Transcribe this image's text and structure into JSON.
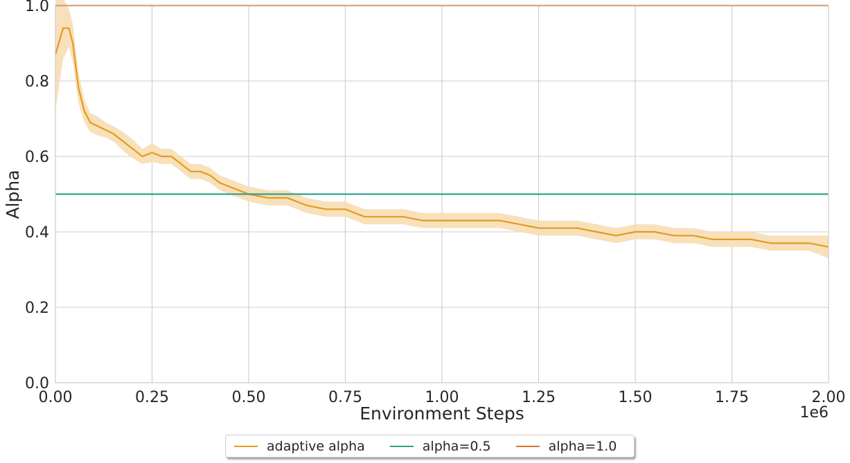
{
  "chart_data": {
    "type": "line",
    "xlabel": "Environment Steps",
    "ylabel": "Alpha",
    "x_offset_text": "1e6",
    "xlim": [
      0,
      2000000
    ],
    "ylim": [
      0,
      1.0
    ],
    "x_ticks": [
      0,
      250000,
      500000,
      750000,
      1000000,
      1250000,
      1500000,
      1750000,
      2000000
    ],
    "x_tick_labels": [
      "0.00",
      "0.25",
      "0.50",
      "0.75",
      "1.00",
      "1.25",
      "1.50",
      "1.75",
      "2.00"
    ],
    "y_ticks": [
      0,
      0.2,
      0.4,
      0.6,
      0.8,
      1.0
    ],
    "y_tick_labels": [
      "0.0",
      "0.2",
      "0.4",
      "0.6",
      "0.8",
      "1.0"
    ],
    "grid": true,
    "legend_placement": "bottom-center-outside",
    "series": [
      {
        "name": "adaptive alpha",
        "color": "#e39b1d",
        "band_color": "#f7ddb3",
        "x": [
          0,
          20000,
          35000,
          45000,
          60000,
          75000,
          90000,
          110000,
          130000,
          150000,
          175000,
          200000,
          225000,
          250000,
          275000,
          300000,
          325000,
          350000,
          375000,
          400000,
          425000,
          450000,
          475000,
          500000,
          550000,
          600000,
          650000,
          700000,
          750000,
          800000,
          850000,
          900000,
          950000,
          1000000,
          1050000,
          1100000,
          1150000,
          1200000,
          1250000,
          1300000,
          1350000,
          1400000,
          1450000,
          1500000,
          1550000,
          1600000,
          1650000,
          1700000,
          1750000,
          1800000,
          1850000,
          1900000,
          1950000,
          2000000
        ],
        "y": [
          0.87,
          0.94,
          0.94,
          0.9,
          0.78,
          0.72,
          0.69,
          0.68,
          0.67,
          0.66,
          0.64,
          0.62,
          0.6,
          0.61,
          0.6,
          0.6,
          0.58,
          0.56,
          0.56,
          0.55,
          0.53,
          0.52,
          0.51,
          0.5,
          0.49,
          0.49,
          0.47,
          0.46,
          0.46,
          0.44,
          0.44,
          0.44,
          0.43,
          0.43,
          0.43,
          0.43,
          0.43,
          0.42,
          0.41,
          0.41,
          0.41,
          0.4,
          0.39,
          0.4,
          0.4,
          0.39,
          0.39,
          0.38,
          0.38,
          0.38,
          0.37,
          0.37,
          0.37,
          0.36
        ],
        "band": [
          0.15,
          0.08,
          0.05,
          0.05,
          0.04,
          0.03,
          0.025,
          0.025,
          0.02,
          0.02,
          0.025,
          0.025,
          0.02,
          0.025,
          0.02,
          0.02,
          0.02,
          0.02,
          0.02,
          0.02,
          0.02,
          0.02,
          0.02,
          0.02,
          0.02,
          0.02,
          0.02,
          0.02,
          0.02,
          0.02,
          0.02,
          0.02,
          0.02,
          0.02,
          0.02,
          0.02,
          0.02,
          0.02,
          0.02,
          0.02,
          0.02,
          0.02,
          0.02,
          0.02,
          0.02,
          0.02,
          0.02,
          0.02,
          0.02,
          0.02,
          0.02,
          0.02,
          0.02,
          0.03
        ]
      },
      {
        "name": "alpha=0.5",
        "color": "#2fa38a",
        "x": [
          0,
          2000000
        ],
        "y": [
          0.5,
          0.5
        ]
      },
      {
        "name": "alpha=1.0",
        "color": "#d2752d",
        "x": [
          0,
          2000000
        ],
        "y": [
          1.0,
          1.0
        ]
      }
    ]
  }
}
